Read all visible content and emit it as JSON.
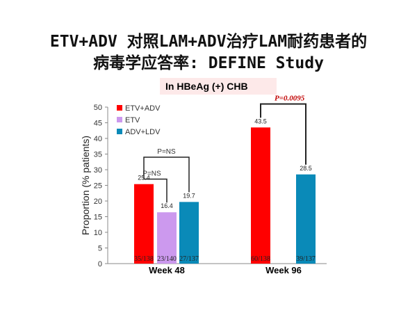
{
  "slide": {
    "title_line_1": "ETV+ADV 对照LAM+ADV治疗LAM耐药患者的",
    "title_line_2": "病毒学应答率: DEFINE Study",
    "subtitle": "In HBeAg (+) CHB"
  },
  "chart_data": {
    "type": "bar",
    "title": "",
    "xlabel": "",
    "ylabel": "Proportion (% patients)",
    "ylim": [
      0,
      50
    ],
    "yticks": [
      0,
      5,
      10,
      15,
      20,
      25,
      30,
      35,
      40,
      45,
      50
    ],
    "grid": false,
    "legend_position": "top-left",
    "groups": [
      "Week 48",
      "Week 96"
    ],
    "series": [
      {
        "name": "ETV+ADV",
        "color": "#ff0000",
        "values": [
          25.4,
          43.5
        ],
        "labels": [
          "25.4",
          "43.5"
        ],
        "counts": [
          "35/138",
          "60/138"
        ]
      },
      {
        "name": "ETV",
        "color": "#cc99ee",
        "values": [
          16.4,
          null
        ],
        "labels": [
          "16.4",
          null
        ],
        "counts": [
          "23/140",
          null
        ]
      },
      {
        "name": "ADV+LDV",
        "color": "#0a8ab8",
        "values": [
          19.7,
          28.5
        ],
        "labels": [
          "19.7",
          "28.5"
        ],
        "counts": [
          "27/137",
          "39/137"
        ]
      }
    ],
    "annotations": [
      {
        "text": "P=NS",
        "group": "Week 48",
        "between": [
          "ETV+ADV",
          "ADV+LDV"
        ],
        "style": "plain"
      },
      {
        "text": "P=NS",
        "group": "Week 48",
        "between": [
          "ETV+ADV",
          "ETV"
        ],
        "style": "plain"
      },
      {
        "text": "P=0.0095",
        "group": "Week 96",
        "between": [
          "ETV+ADV",
          "ADV+LDV"
        ],
        "style": "bold"
      }
    ]
  }
}
